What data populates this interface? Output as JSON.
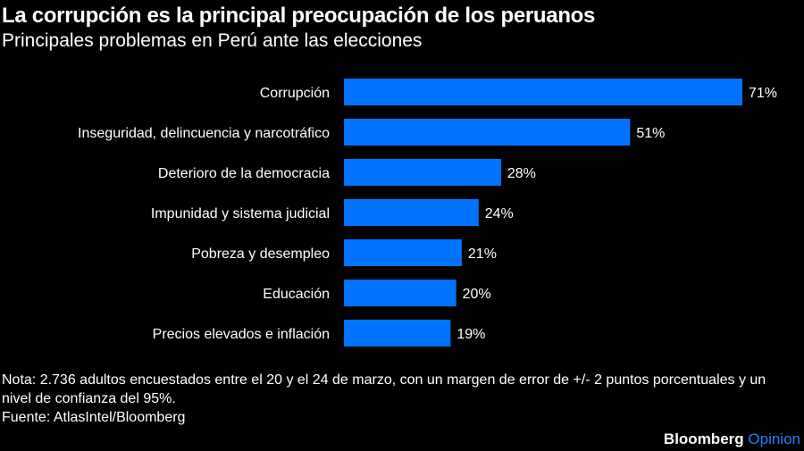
{
  "header": {
    "title": "La corrupción es la principal preocupación de los peruanos",
    "subtitle": "Principales problemas en Perú ante las elecciones"
  },
  "chart_data": {
    "type": "bar",
    "orientation": "horizontal",
    "categories": [
      "Corrupción",
      "Inseguridad, delincuencia y narcotráfico",
      "Deterioro de la democracia",
      "Impunidad y sistema judicial",
      "Pobreza y desempleo",
      "Educación",
      "Precios elevados e inflación"
    ],
    "values": [
      71,
      51,
      28,
      24,
      21,
      20,
      19
    ],
    "value_labels": [
      "71%",
      "51%",
      "28%",
      "24%",
      "21%",
      "20%",
      "19%"
    ],
    "unit": "%",
    "bar_color": "#0074ff",
    "xlim": [
      0,
      71
    ],
    "grid": false
  },
  "footer": {
    "note": "Nota: 2.736 adultos encuestados entre el 20 y el 24 de marzo, con un margen de error de +/- 2 puntos porcentuales y un nivel de confianza del 95%.",
    "source": "Fuente: AtlasIntel/Bloomberg",
    "logo_brand": "Bloomberg",
    "logo_section": "Opinion"
  }
}
